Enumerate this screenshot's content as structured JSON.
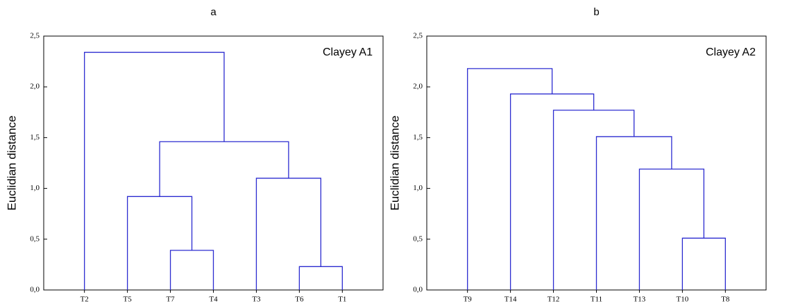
{
  "chart_data": [
    {
      "type": "dendrogram",
      "title": "a",
      "annotation": "Clayey A1",
      "y_label": "Euclidian distance",
      "categories": [
        "T2",
        "T5",
        "T7",
        "T4",
        "T3",
        "T6",
        "T1"
      ],
      "merges": [
        {
          "children": [
            5,
            6
          ],
          "height": 0.23
        },
        {
          "children": [
            2,
            3
          ],
          "height": 0.39
        },
        {
          "children": [
            1,
            8
          ],
          "height": 0.92
        },
        {
          "children": [
            4,
            7
          ],
          "height": 1.1
        },
        {
          "children": [
            9,
            10
          ],
          "height": 1.46
        },
        {
          "children": [
            0,
            11
          ],
          "height": 2.34
        }
      ],
      "color": "#2b2bd0",
      "ylim": [
        0,
        2.5
      ],
      "yticks": [
        {
          "value": 0,
          "label": "0,0"
        },
        {
          "value": 0.5,
          "label": "0,5"
        },
        {
          "value": 1,
          "label": "1,0"
        },
        {
          "value": 1.5,
          "label": "1,5"
        },
        {
          "value": 2,
          "label": "2,0"
        },
        {
          "value": 2.5,
          "label": "2,5"
        }
      ]
    },
    {
      "type": "dendrogram",
      "title": "b",
      "annotation": "Clayey A2",
      "y_label": "Euclidian distance",
      "categories": [
        "T9",
        "T14",
        "T12",
        "T11",
        "T13",
        "T10",
        "T8"
      ],
      "merges": [
        {
          "children": [
            5,
            6
          ],
          "height": 0.51
        },
        {
          "children": [
            4,
            7
          ],
          "height": 1.19
        },
        {
          "children": [
            3,
            8
          ],
          "height": 1.51
        },
        {
          "children": [
            2,
            9
          ],
          "height": 1.77
        },
        {
          "children": [
            1,
            10
          ],
          "height": 1.93
        },
        {
          "children": [
            0,
            11
          ],
          "height": 2.18
        }
      ],
      "color": "#2b2bd0",
      "ylim": [
        0,
        2.5
      ],
      "yticks": [
        {
          "value": 0,
          "label": "0,0"
        },
        {
          "value": 0.5,
          "label": "0,5"
        },
        {
          "value": 1,
          "label": "1,0"
        },
        {
          "value": 1.5,
          "label": "1,5"
        },
        {
          "value": 2,
          "label": "2,0"
        },
        {
          "value": 2.5,
          "label": "2,5"
        }
      ]
    }
  ]
}
